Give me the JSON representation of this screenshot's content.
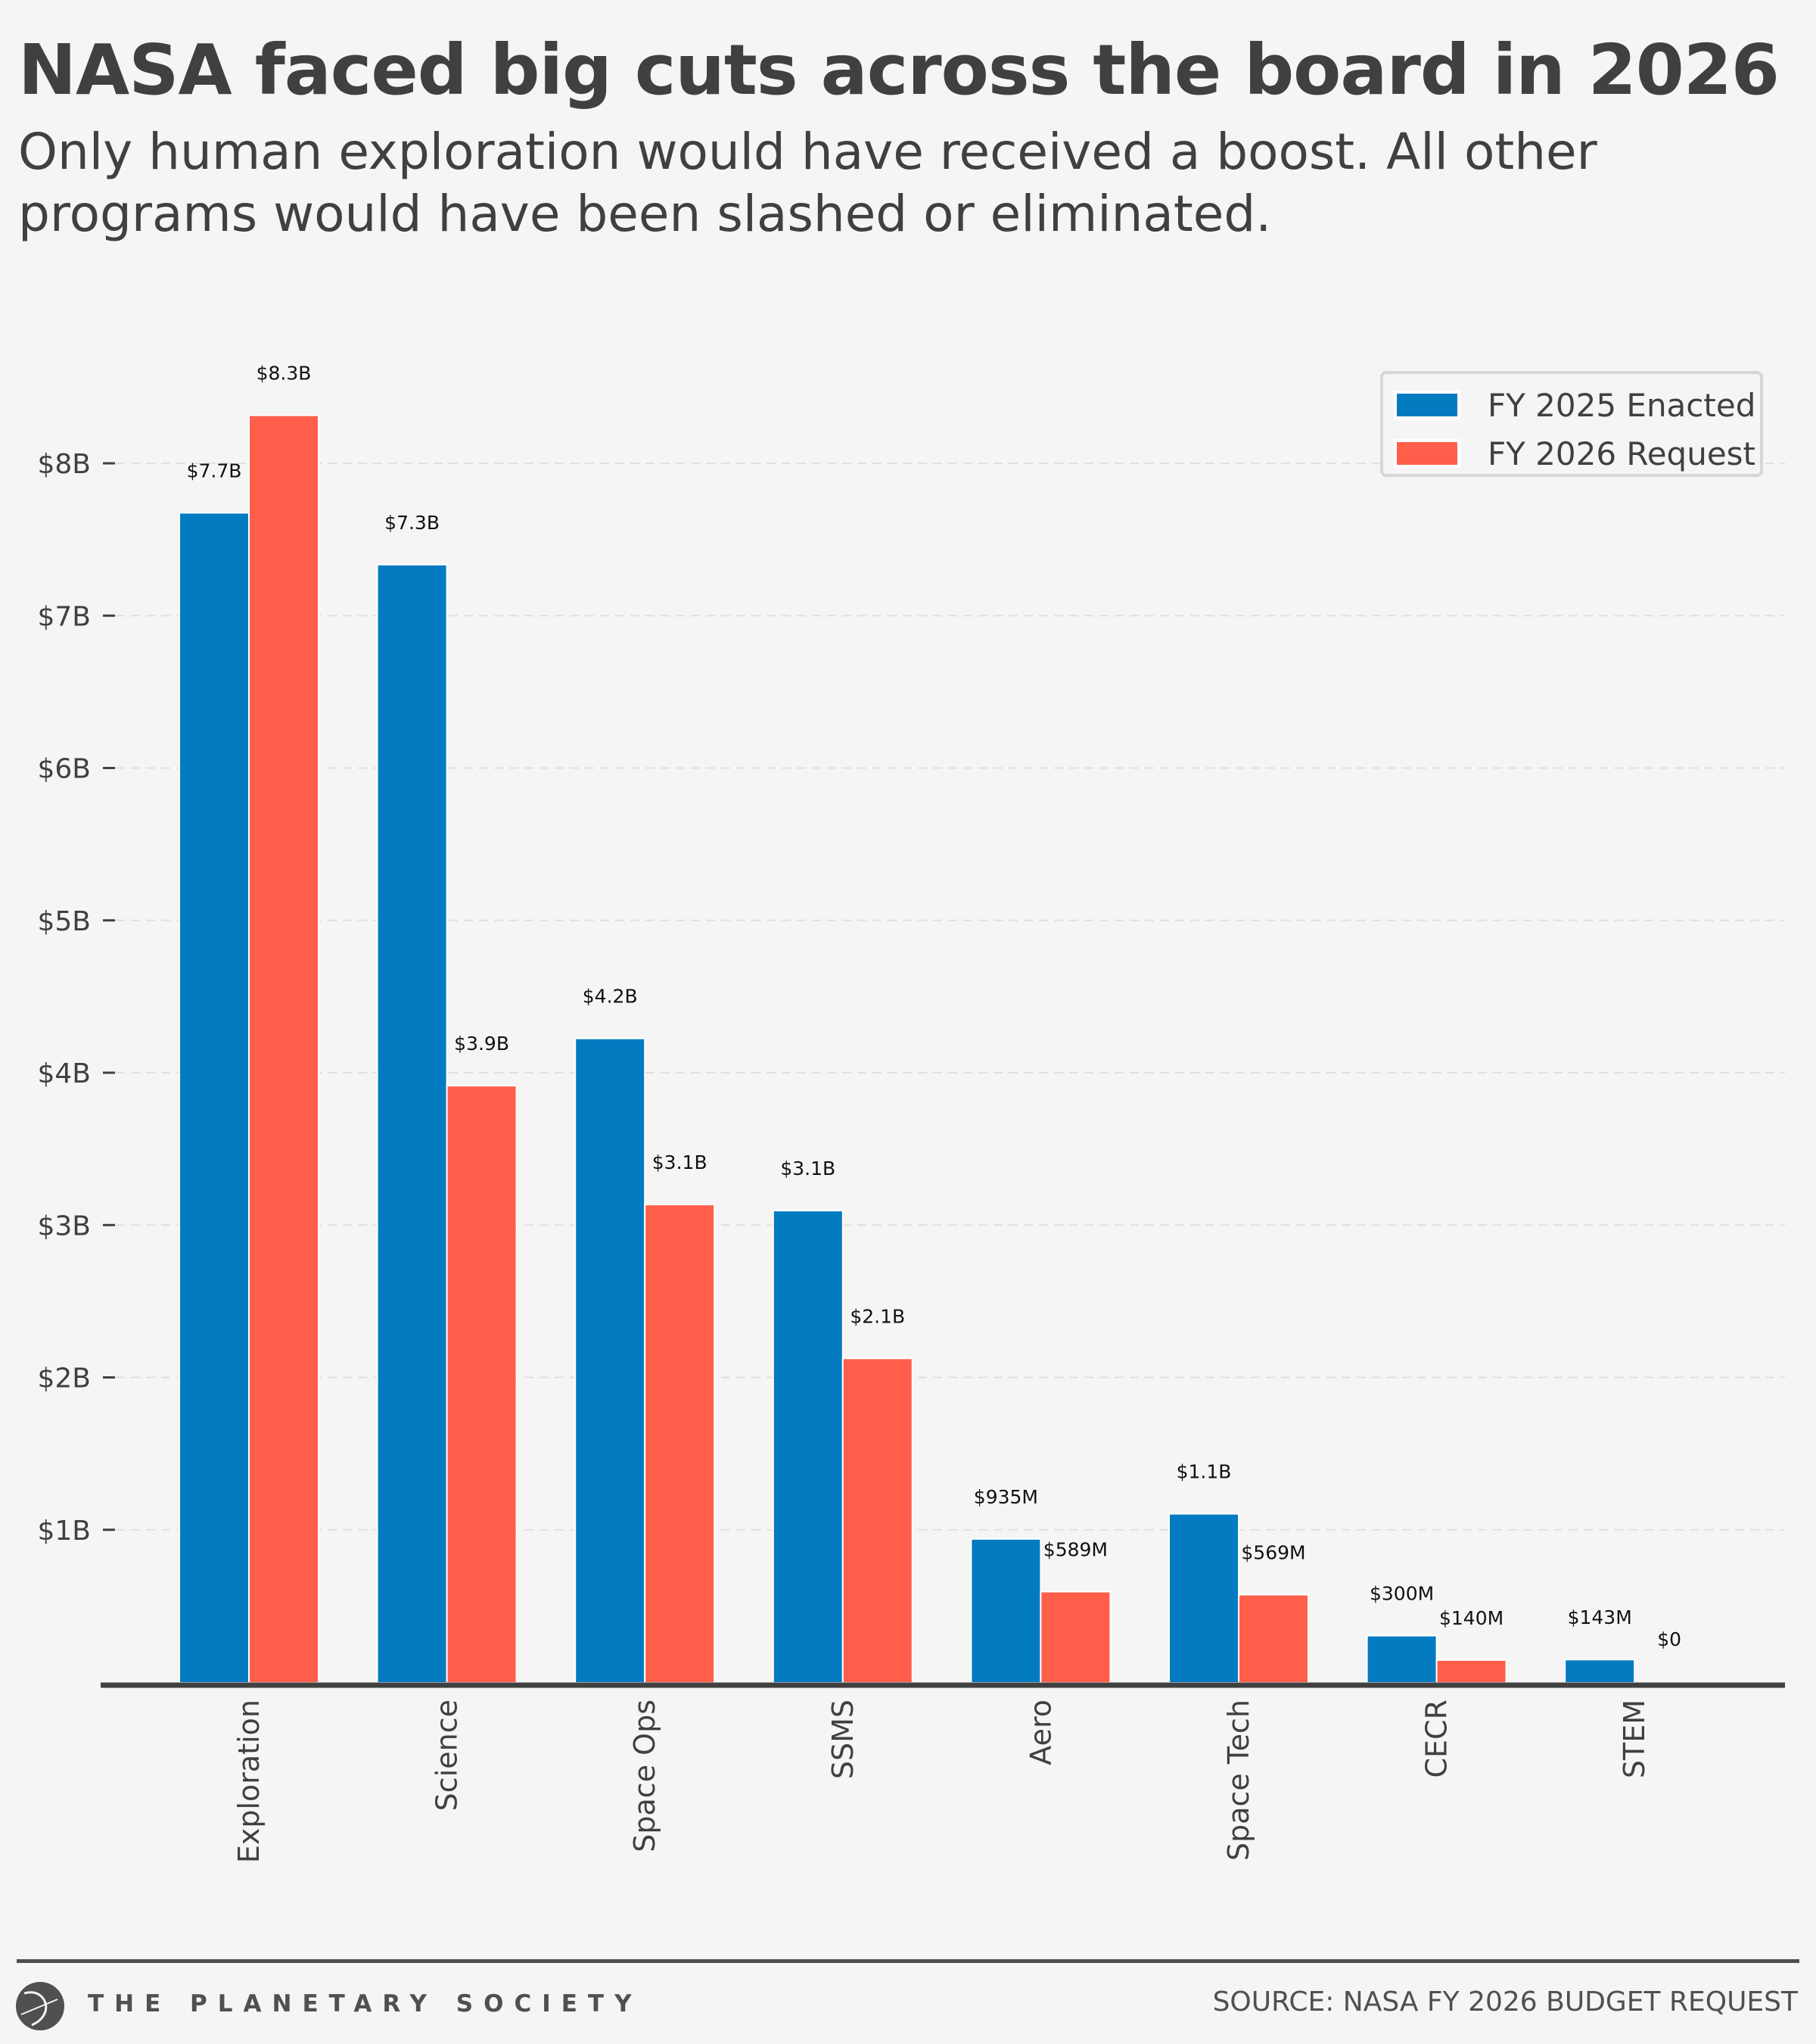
{
  "header": {
    "title": "NASA faced big cuts across the board in 2026",
    "subtitle": "Only human exploration would have received a boost. All other programs would have been slashed or eliminated."
  },
  "colors": {
    "background": "#f5f5f5",
    "fy2025": "#037bc0",
    "fy2026": "#ff5e4b",
    "text": "#404040",
    "axis": "#404040",
    "grid": "#e0e0e0"
  },
  "chart_data": {
    "type": "bar",
    "title": "NASA faced big cuts across the board in 2026",
    "xlabel": "",
    "ylabel": "",
    "ylim": [
      0,
      8.5
    ],
    "yunit": "billion USD",
    "yticks": [
      1,
      2,
      3,
      4,
      5,
      6,
      7,
      8
    ],
    "ytick_labels": [
      "$1B",
      "$2B",
      "$3B",
      "$4B",
      "$5B",
      "$6B",
      "$7B",
      "$8B"
    ],
    "grid": true,
    "legend_position": "top-right",
    "categories": [
      "Exploration",
      "Science",
      "Space Ops",
      "SSMS",
      "Aero",
      "Space Tech",
      "CECR",
      "STEM"
    ],
    "series": [
      {
        "name": "FY 2025 Enacted",
        "color": "#037bc0",
        "values": [
          7.67,
          7.33,
          4.22,
          3.09,
          0.935,
          1.1,
          0.3,
          0.143
        ],
        "labels": [
          "$7.7B",
          "$7.3B",
          "$4.2B",
          "$3.1B",
          "$935M",
          "$1.1B",
          "$300M",
          "$143M"
        ]
      },
      {
        "name": "FY 2026 Request",
        "color": "#ff5e4b",
        "values": [
          8.31,
          3.91,
          3.13,
          2.12,
          0.589,
          0.569,
          0.14,
          0
        ],
        "labels": [
          "$8.3B",
          "$3.9B",
          "$3.1B",
          "$2.1B",
          "$589M",
          "$569M",
          "$140M",
          "$0"
        ]
      }
    ]
  },
  "legend": {
    "items": [
      {
        "label": "FY 2025 Enacted",
        "color": "#037bc0"
      },
      {
        "label": "FY 2026 Request",
        "color": "#ff5e4b"
      }
    ]
  },
  "footer": {
    "organization": "THE PLANETARY SOCIETY",
    "source": "SOURCE: NASA FY 2026 BUDGET REQUEST",
    "logo_icon": "planetary-society-logo-icon"
  }
}
